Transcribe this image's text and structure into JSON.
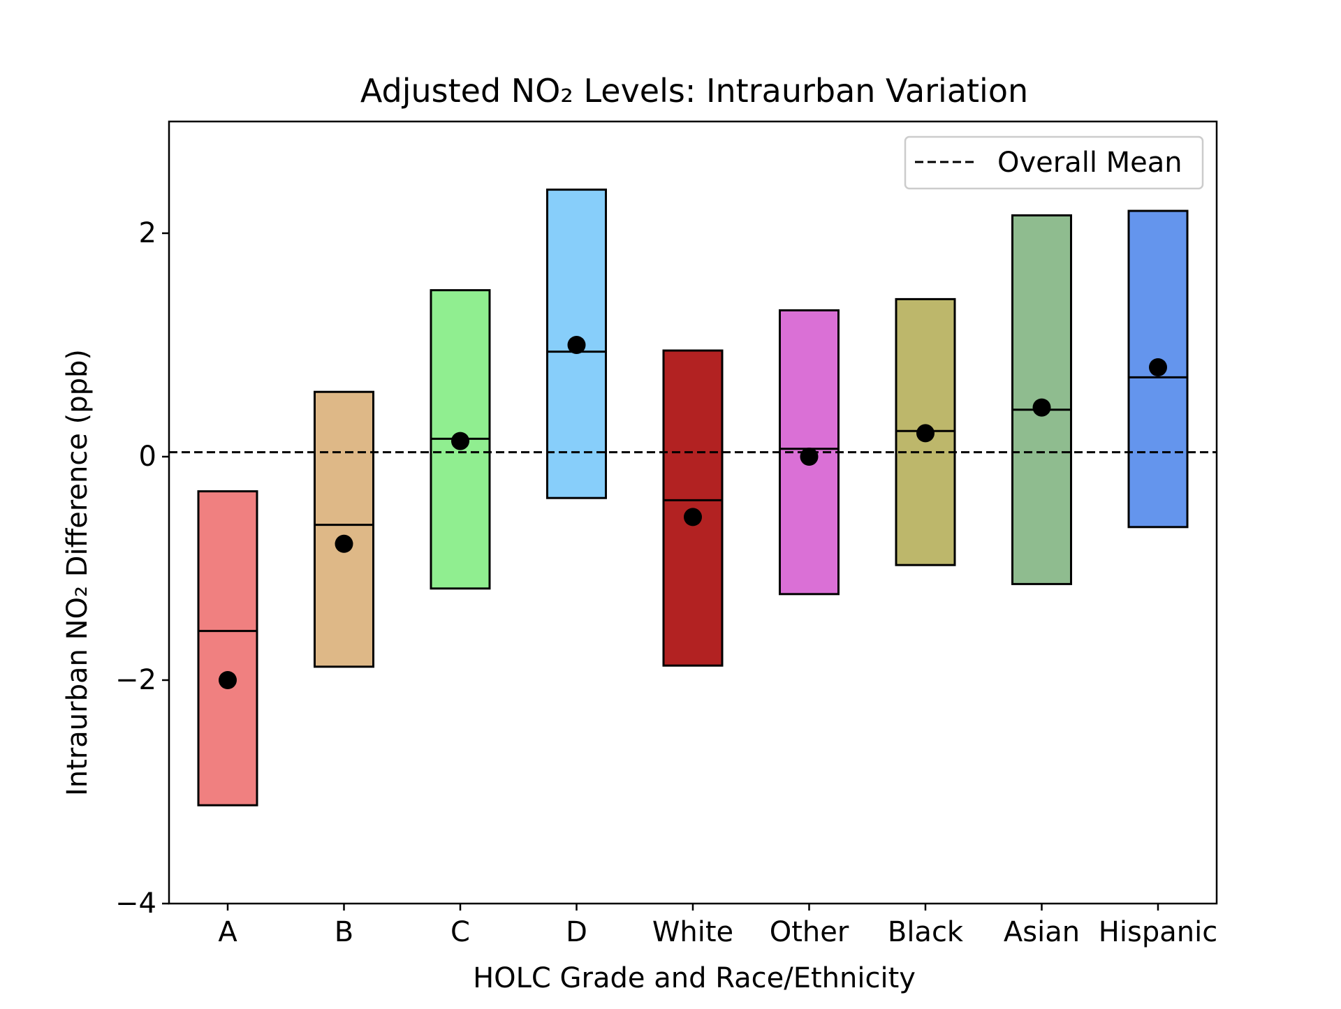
{
  "chart_data": {
    "type": "box",
    "title": "Adjusted NO₂ Levels: Intraurban Variation",
    "xlabel": "HOLC Grade and Race/Ethnicity",
    "ylabel": "Intraurban NO₂ Difference (ppb)",
    "ylim": [
      -4,
      3
    ],
    "yticks": [
      -4,
      -2,
      0,
      2
    ],
    "ytick_labels": [
      "−4",
      "−2",
      "0",
      "2"
    ],
    "grid": false,
    "legend": {
      "position": "top-right",
      "entries": [
        {
          "label": "Overall Mean",
          "style": "dashed-line",
          "color": "#000000"
        }
      ]
    },
    "reference_line": {
      "label": "Overall Mean",
      "y": 0.04,
      "style": "dashed"
    },
    "categories": [
      "A",
      "B",
      "C",
      "D",
      "White",
      "Other",
      "Black",
      "Asian",
      "Hispanic"
    ],
    "boxes": [
      {
        "category": "A",
        "low": -3.12,
        "high": -0.31,
        "median": -1.56,
        "mean": -2.0,
        "color": "#f08080"
      },
      {
        "category": "B",
        "low": -1.88,
        "high": 0.58,
        "median": -0.61,
        "mean": -0.78,
        "color": "#deb887"
      },
      {
        "category": "C",
        "low": -1.18,
        "high": 1.49,
        "median": 0.16,
        "mean": 0.14,
        "color": "#90ee90"
      },
      {
        "category": "D",
        "low": -0.37,
        "high": 2.39,
        "median": 0.94,
        "mean": 1.0,
        "color": "#87cefa"
      },
      {
        "category": "White",
        "low": -1.87,
        "high": 0.95,
        "median": -0.39,
        "mean": -0.54,
        "color": "#b22222"
      },
      {
        "category": "Other",
        "low": -1.23,
        "high": 1.31,
        "median": 0.07,
        "mean": 0.0,
        "color": "#da70d6"
      },
      {
        "category": "Black",
        "low": -0.97,
        "high": 1.41,
        "median": 0.23,
        "mean": 0.21,
        "color": "#bdb76b"
      },
      {
        "category": "Asian",
        "low": -1.14,
        "high": 2.16,
        "median": 0.42,
        "mean": 0.44,
        "color": "#8fbc8f"
      },
      {
        "category": "Hispanic",
        "low": -0.63,
        "high": 2.2,
        "median": 0.71,
        "mean": 0.8,
        "color": "#6495ed"
      }
    ]
  }
}
